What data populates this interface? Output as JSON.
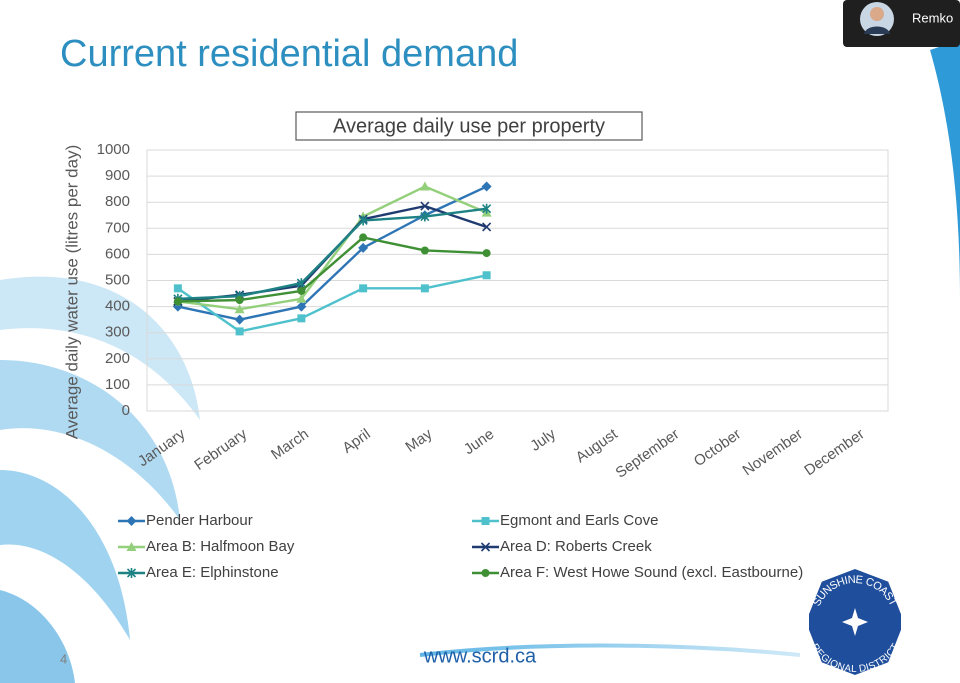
{
  "participant": {
    "name": "Remko"
  },
  "slide": {
    "title": "Current residential demand",
    "page_number": "4",
    "url": "www.scrd.ca"
  },
  "logo": {
    "top": "SUNSHINE COAST",
    "bottom": "REGIONAL DISTRICT"
  },
  "chart_data": {
    "type": "line",
    "title": "Average daily use per property",
    "y_label": "Average daily water use (litres per day)",
    "categories": [
      "January",
      "February",
      "March",
      "April",
      "May",
      "June",
      "July",
      "August",
      "September",
      "October",
      "November",
      "December"
    ],
    "series": [
      {
        "name": "Pender Harbour",
        "color": "#2e75b6",
        "marker": "diamond",
        "values": [
          400,
          350,
          400,
          625,
          750,
          860,
          null,
          null,
          null,
          null,
          null,
          null
        ]
      },
      {
        "name": "Egmont and Earls Cove",
        "color": "#4fc1cc",
        "marker": "square",
        "values": [
          470,
          305,
          355,
          470,
          470,
          520,
          null,
          null,
          null,
          null,
          null,
          null
        ]
      },
      {
        "name": "Area B: Halfmoon Bay",
        "color": "#94d07c",
        "marker": "triangle",
        "values": [
          420,
          390,
          430,
          745,
          860,
          760,
          null,
          null,
          null,
          null,
          null,
          null
        ]
      },
      {
        "name": "Area D: Roberts Creek",
        "color": "#1f3b70",
        "marker": "x",
        "values": [
          420,
          445,
          480,
          735,
          785,
          705,
          null,
          null,
          null,
          null,
          null,
          null
        ]
      },
      {
        "name": "Area E: Elphinstone",
        "color": "#1e8284",
        "marker": "star",
        "values": [
          430,
          440,
          490,
          730,
          745,
          775,
          null,
          null,
          null,
          null,
          null,
          null
        ]
      },
      {
        "name": "Area F: West Howe Sound (excl. Eastbourne)",
        "color": "#3f8f34",
        "marker": "circle",
        "values": [
          420,
          425,
          460,
          665,
          615,
          605,
          null,
          null,
          null,
          null,
          null,
          null
        ]
      }
    ],
    "ylim": [
      0,
      1000
    ],
    "yticks": [
      0,
      100,
      200,
      300,
      400,
      500,
      600,
      700,
      800,
      900,
      1000
    ],
    "grid": true,
    "legend": "bottom"
  }
}
